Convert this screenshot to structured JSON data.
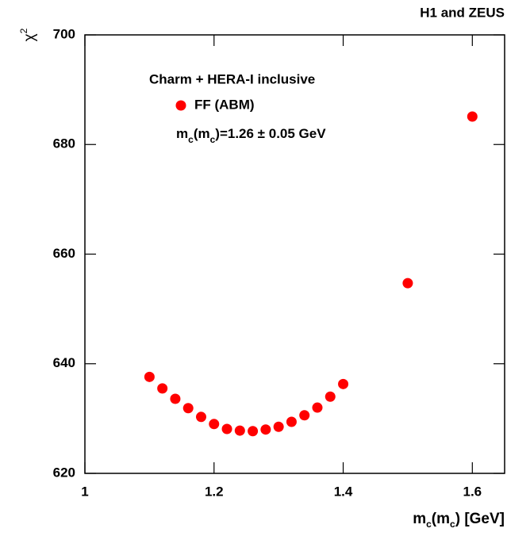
{
  "chart_data": {
    "type": "scatter",
    "title": "H1 and ZEUS",
    "xlabel": [
      "m",
      "c",
      "(m",
      "c",
      ") [GeV]"
    ],
    "ylabel": [
      "χ",
      "2"
    ],
    "legend_title": "Charm + HERA-I inclusive",
    "annotation": [
      "m",
      "c",
      "(m",
      "c",
      ")=1.26 ± 0.05 GeV"
    ],
    "series": [
      {
        "name": "FF (ABM)",
        "color": "#ff0000",
        "x": [
          1.1,
          1.12,
          1.14,
          1.16,
          1.18,
          1.2,
          1.22,
          1.24,
          1.26,
          1.28,
          1.3,
          1.32,
          1.34,
          1.36,
          1.38,
          1.4,
          1.5,
          1.6
        ],
        "values": [
          637.6,
          635.5,
          633.6,
          631.9,
          630.3,
          629.0,
          628.1,
          627.8,
          627.7,
          628.0,
          628.5,
          629.4,
          630.6,
          632.0,
          634.0,
          636.3,
          654.7,
          685.1
        ]
      }
    ],
    "xlim": [
      1,
      1.65
    ],
    "xticks": [
      1,
      1.2,
      1.4,
      1.6
    ],
    "ylim": [
      620,
      700
    ],
    "yticks": [
      620,
      640,
      660,
      680,
      700
    ]
  }
}
